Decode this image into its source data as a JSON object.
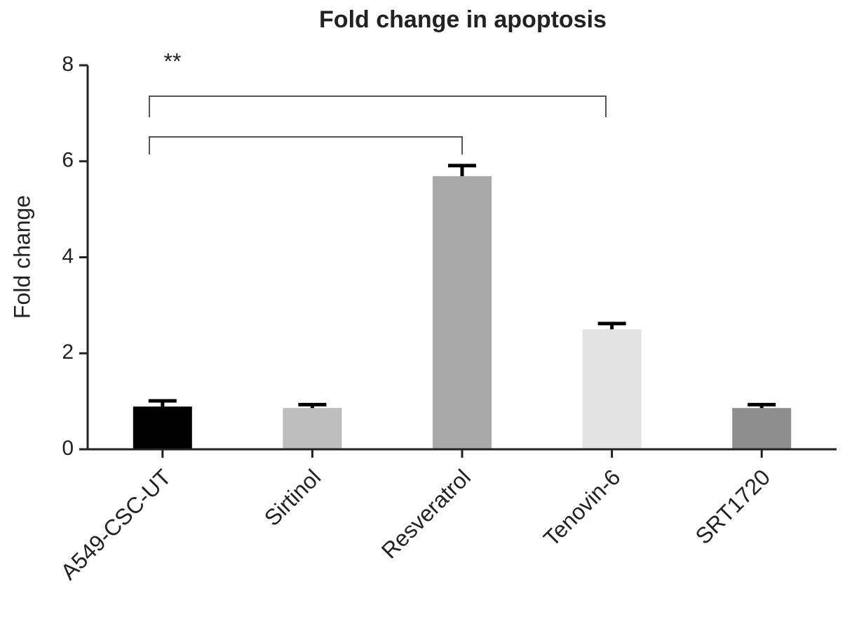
{
  "chart_data": {
    "type": "bar",
    "title": "Fold change in apoptosis",
    "y_label": "Fold change",
    "categories": [
      "A549-CSC-UT",
      "Sirtinol",
      "Resveratrol",
      "Tenovin-6",
      "SRT1720"
    ],
    "values": [
      0.89,
      0.86,
      5.69,
      2.5,
      0.86
    ],
    "errors": [
      0.12,
      0.07,
      0.22,
      0.12,
      0.07
    ],
    "colors": [
      "#000000",
      "#bdbdbd",
      "#a9a9a9",
      "#e3e3e3",
      "#8e8e8e"
    ],
    "ylim": [
      0,
      8
    ],
    "yticks": [
      0,
      2,
      4,
      6,
      8
    ],
    "annotation": "**"
  }
}
